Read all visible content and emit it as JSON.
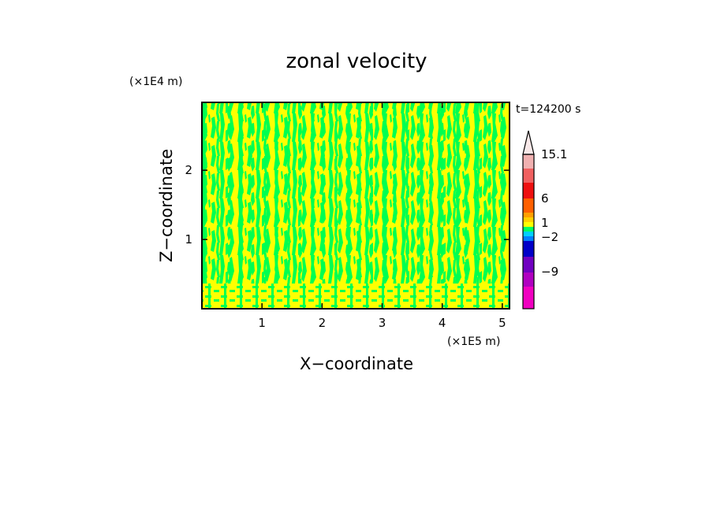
{
  "chart_data": {
    "type": "heatmap",
    "title": "zonal velocity",
    "xlabel": "X−coordinate",
    "ylabel": "Z−coordinate",
    "x_unit": "(×1E5 m)",
    "y_unit": "(×1E4 m)",
    "time_label": "t=124200 s",
    "x_ticks": [
      1,
      2,
      3,
      4,
      5
    ],
    "x_tick_labels": [
      "1",
      "2",
      "3",
      "4",
      "5"
    ],
    "y_ticks": [
      1,
      2
    ],
    "y_tick_labels": [
      "1",
      "2"
    ],
    "xlim": [
      0,
      5.12
    ],
    "ylim": [
      0,
      2.98
    ],
    "field_colors": {
      "positive": "#ffff00",
      "negative": "#00ff50",
      "edge": "#55ee44"
    },
    "colorbar": {
      "levels": [
        {
          "color": "#f0b0b0"
        },
        {
          "color": "#f06060"
        },
        {
          "color": "#ee1010"
        },
        {
          "color": "#ff6000"
        },
        {
          "color": "#ffa000"
        },
        {
          "color": "#ffd000"
        },
        {
          "color": "#ffff00"
        },
        {
          "color": "#00ff60"
        },
        {
          "color": "#00d0ff"
        },
        {
          "color": "#0080ff"
        },
        {
          "color": "#0000c8"
        },
        {
          "color": "#7000c0"
        },
        {
          "color": "#b000c0"
        },
        {
          "color": "#f000c0"
        }
      ],
      "labels": [
        "15.1",
        "6",
        "1",
        "−2",
        "−9"
      ],
      "top_extension": true
    }
  }
}
